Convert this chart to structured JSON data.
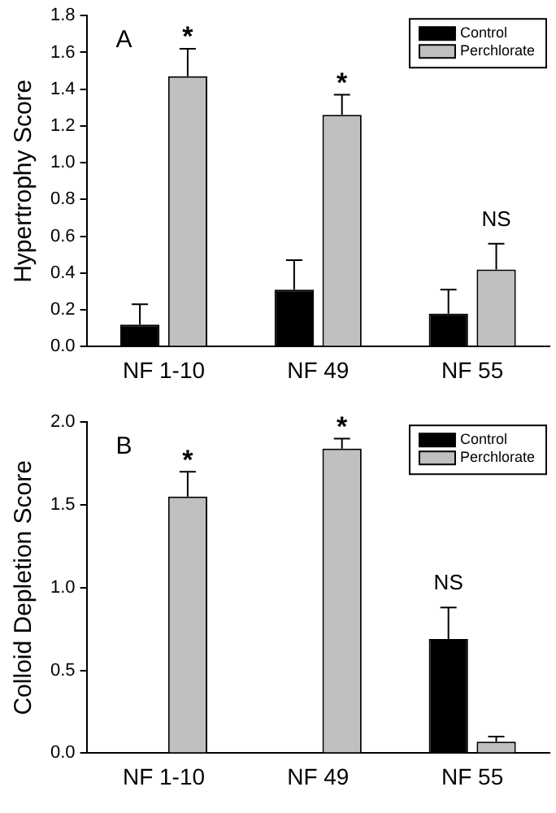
{
  "chart_data": [
    {
      "type": "bar",
      "ylabel": "Hypertrophy Score",
      "categories": [
        "NF 1-10",
        "NF 49",
        "NF 55"
      ],
      "series": [
        {
          "name": "Control",
          "color": "#000000",
          "values": [
            0.12,
            0.31,
            0.18
          ],
          "errors": [
            0.11,
            0.16,
            0.13
          ]
        },
        {
          "name": "Perchlorate",
          "color": "#c0c0c0",
          "values": [
            1.47,
            1.26,
            0.42
          ],
          "errors": [
            0.15,
            0.11,
            0.14
          ]
        }
      ],
      "ylim": [
        0,
        1.8
      ],
      "yticks": [
        {
          "value": 0,
          "label": "0.0"
        },
        {
          "value": 0.2,
          "label": "0.2"
        },
        {
          "value": 0.4,
          "label": "0.4"
        },
        {
          "value": 0.6,
          "label": "0.6"
        },
        {
          "value": 0.8,
          "label": "0.8"
        },
        {
          "value": 1,
          "label": "1.0"
        },
        {
          "value": 1.2,
          "label": "1.2"
        },
        {
          "value": 1.4,
          "label": "1.4"
        },
        {
          "value": 1.6,
          "label": "1.6"
        },
        {
          "value": 1.8,
          "label": "1.8"
        }
      ],
      "grid": false,
      "legend": "top right",
      "annotations": [
        "A",
        "*",
        "*",
        "NS"
      ]
    },
    {
      "type": "bar",
      "ylabel": "Colloid Depletion Score",
      "categories": [
        "NF 1-10",
        "NF 49",
        "NF 55"
      ],
      "series": [
        {
          "name": "Control",
          "color": "#000000",
          "values": [
            0,
            0,
            0.69
          ],
          "errors": [
            null,
            null,
            0.19
          ]
        },
        {
          "name": "Perchlorate",
          "color": "#c0c0c0",
          "values": [
            1.55,
            1.84,
            0.07
          ],
          "errors": [
            0.15,
            0.06,
            0.03
          ]
        }
      ],
      "ylim": [
        0,
        2
      ],
      "yticks": [
        {
          "value": 0,
          "label": "0.0"
        },
        {
          "value": 0.5,
          "label": "0.5"
        },
        {
          "value": 1,
          "label": "1.0"
        },
        {
          "value": 1.5,
          "label": "1.5"
        },
        {
          "value": 2,
          "label": "2.0"
        }
      ],
      "grid": false,
      "legend": "top right",
      "annotations": [
        "B",
        "*",
        "*",
        "NS"
      ]
    }
  ]
}
